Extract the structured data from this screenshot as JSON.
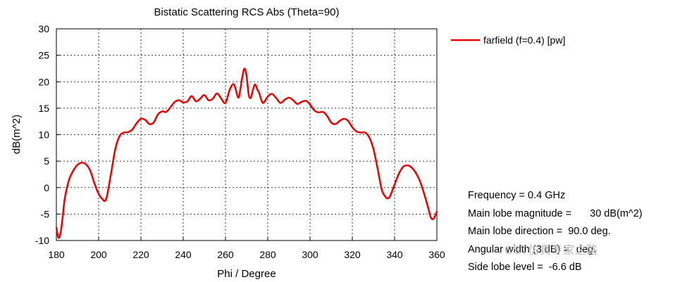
{
  "chart_data": {
    "type": "line",
    "title": "Bistatic Scattering RCS Abs (Theta=90)",
    "xlabel": "Phi / Degree",
    "ylabel": "dB(m^2)",
    "xlim": [
      180,
      360
    ],
    "ylim": [
      -10,
      30
    ],
    "xticks": [
      180,
      200,
      220,
      240,
      260,
      280,
      300,
      320,
      340,
      360
    ],
    "yticks": [
      -10,
      -5,
      0,
      5,
      10,
      15,
      20,
      25,
      30
    ],
    "grid": true,
    "legend_position": "right",
    "series": [
      {
        "name": "farfield (f=0.4) [pw]",
        "color": "#ee0000",
        "x": [
          180,
          181,
          182,
          183,
          184,
          186,
          188,
          190,
          192,
          194,
          196,
          198,
          200,
          202,
          203,
          204,
          206,
          208,
          210,
          212,
          214,
          216,
          218,
          220,
          222,
          224,
          226,
          228,
          230,
          232,
          234,
          236,
          238,
          240,
          242,
          244,
          246,
          248,
          250,
          252,
          254,
          256,
          258,
          260,
          262,
          264,
          266,
          267,
          268,
          269,
          270,
          271,
          272,
          273,
          274,
          275,
          276,
          277,
          278,
          280,
          282,
          284,
          286,
          288,
          290,
          292,
          294,
          296,
          298,
          300,
          302,
          304,
          306,
          308,
          310,
          312,
          314,
          316,
          318,
          320,
          322,
          324,
          326,
          328,
          330,
          332,
          334,
          336,
          337,
          338,
          340,
          342,
          344,
          346,
          348,
          350,
          352,
          354,
          356,
          357,
          358,
          359,
          360
        ],
        "y": [
          -7.5,
          -9.5,
          -8.5,
          -5.5,
          -2,
          1.5,
          3.2,
          4.3,
          4.7,
          4.4,
          3.2,
          0.8,
          -1.2,
          -2.3,
          -2.5,
          -1.5,
          3,
          7.5,
          9.8,
          10.4,
          10.5,
          11,
          12.2,
          13,
          12.8,
          12,
          12.3,
          13.8,
          14.4,
          14.3,
          15.2,
          16.2,
          16.5,
          16.1,
          16.3,
          17.3,
          16.3,
          16.8,
          17.5,
          16.5,
          16.8,
          17.8,
          16.8,
          16,
          18.5,
          19.5,
          17,
          18.5,
          21,
          22.5,
          21,
          17.5,
          17,
          18.5,
          19.5,
          18.6,
          17.8,
          16.5,
          16,
          17.2,
          17.7,
          16.9,
          16,
          16.6,
          17,
          16.5,
          15.8,
          16.2,
          16.4,
          15.7,
          14.6,
          14.2,
          14.3,
          13.6,
          12.3,
          12,
          12.6,
          13,
          12.6,
          11.4,
          10.6,
          10.4,
          10.4,
          9.5,
          7.3,
          3.5,
          -0.5,
          -1.9,
          -2,
          -1.5,
          0.6,
          2.6,
          3.9,
          4.2,
          3.8,
          2.8,
          1.2,
          -1.2,
          -4,
          -5.5,
          -6,
          -5.5,
          -4.5
        ]
      }
    ]
  },
  "info": {
    "frequency_label": "Frequency = ",
    "frequency_value": "0.4 GHz",
    "main_lobe_magnitude_label": "Main lobe magnitude =",
    "main_lobe_magnitude_value": "30 dB(m^2)",
    "main_lobe_direction_label": "Main lobe direction =",
    "main_lobe_direction_value": "90.0 deg.",
    "angular_width_label": "Angular width (3 dB) =",
    "angular_width_value": "deg.",
    "side_lobe_label": "Side lobe level =",
    "side_lobe_value": "-6.6 dB"
  },
  "watermark": "CST仿真专家之路"
}
